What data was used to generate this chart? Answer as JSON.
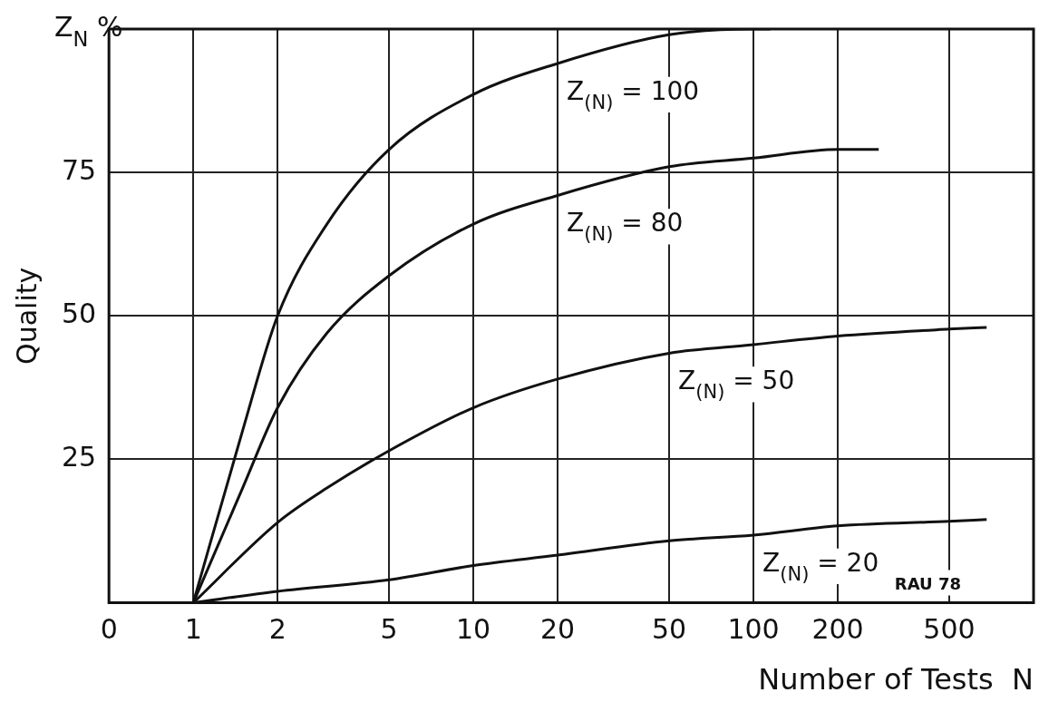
{
  "chart_data": {
    "type": "line",
    "xlabel": "Number of Tests  N",
    "ylabel": "Quality",
    "log": "x",
    "xlim": [
      0.5,
      1000
    ],
    "xticks": [
      {
        "value": 0.5,
        "label": "0"
      },
      1,
      2,
      5,
      10,
      20,
      50,
      100,
      200,
      500
    ],
    "ylim": [
      0,
      100
    ],
    "yticks": [
      {
        "value": 0,
        "label": null
      },
      25,
      50,
      75
    ],
    "grid": true,
    "legend": false,
    "marker": "none",
    "line_style": "solid",
    "series": [
      {
        "name": "Z$_{(N)}$ = 100",
        "color": "#111111",
        "x": [
          1,
          1.5,
          2,
          3,
          5,
          10,
          20,
          50,
          100,
          115
        ],
        "values": [
          0,
          30,
          50,
          66,
          79,
          88.6,
          94,
          99,
          100,
          100
        ]
      },
      {
        "name": "Z$_{(N)}$ = 80",
        "color": "#111111",
        "x": [
          1,
          1.5,
          2,
          3,
          5,
          10,
          20,
          50,
          100,
          200,
          280
        ],
        "values": [
          0,
          20,
          34,
          47,
          57,
          66,
          71,
          76,
          77.5,
          79,
          79
        ]
      },
      {
        "name": "Z$_{(N)}$ = 50",
        "color": "#111111",
        "x": [
          1,
          2,
          3,
          5,
          10,
          20,
          50,
          100,
          200,
          500,
          680
        ],
        "values": [
          0,
          14,
          20,
          26.5,
          34,
          39,
          43.5,
          45,
          46.5,
          47.7,
          48
        ]
      },
      {
        "name": "Z$_{(N)}$ = 20",
        "color": "#111111",
        "x": [
          1,
          2,
          5,
          10,
          20,
          50,
          100,
          200,
          500,
          680
        ],
        "values": [
          0,
          2,
          4,
          6.5,
          8.3,
          10.8,
          11.8,
          13.4,
          14.2,
          14.5
        ]
      }
    ],
    "annotations": [
      "Z$_{N}$ %",
      "RAU 78"
    ]
  }
}
